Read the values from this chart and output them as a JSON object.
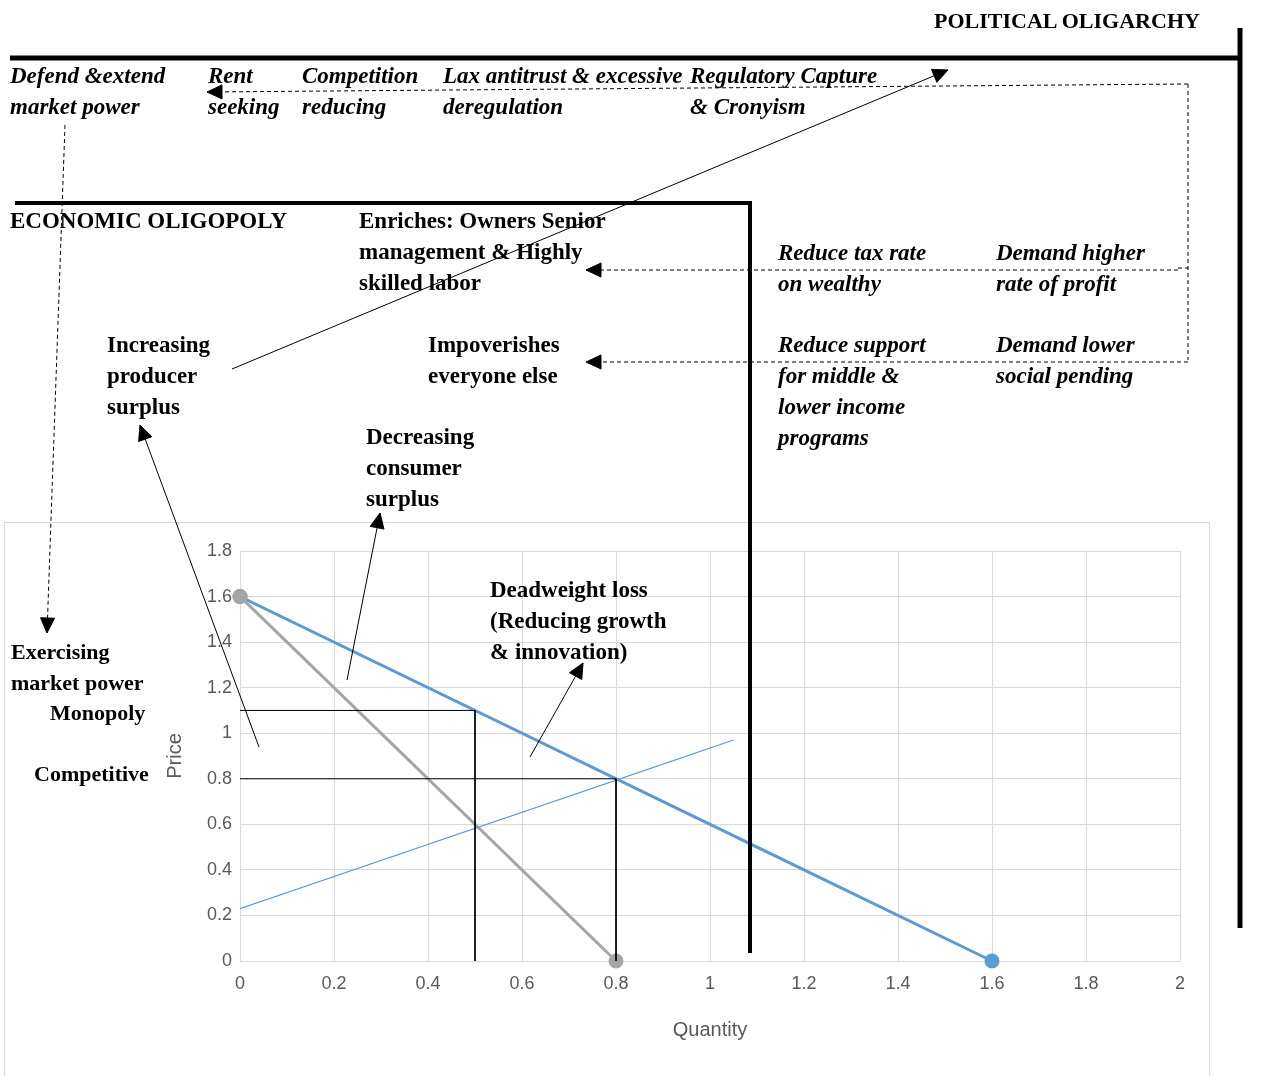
{
  "chart_data": {
    "type": "line",
    "xlabel": "Quantity",
    "ylabel": "Price",
    "xlim": [
      0,
      2
    ],
    "ylim": [
      0,
      1.8
    ],
    "xticks": [
      0,
      0.2,
      0.4,
      0.6,
      0.8,
      1,
      1.2,
      1.4,
      1.6,
      1.8,
      2
    ],
    "yticks": [
      0,
      0.2,
      0.4,
      0.6,
      0.8,
      1,
      1.2,
      1.4,
      1.6,
      1.8
    ],
    "grid": true,
    "series": [
      {
        "color": "#5b9bd5",
        "x": [
          0,
          1.6
        ],
        "values": [
          1.6,
          0
        ],
        "marker": "circle"
      },
      {
        "color": "#a5a5a5",
        "x": [
          0,
          0.8
        ],
        "values": [
          1.6,
          0
        ],
        "marker": "circle"
      },
      {
        "color": "#5b9bd5",
        "x": [
          0,
          1.05
        ],
        "values": [
          0.23,
          0.97
        ],
        "marker": "none"
      },
      {
        "color": "#000000",
        "x": [
          0,
          0.5,
          0.5
        ],
        "values": [
          1.1,
          1.1,
          0
        ],
        "marker": "none"
      },
      {
        "color": "#000000",
        "x": [
          0,
          0.8,
          0.8
        ],
        "values": [
          0.8,
          0.8,
          0
        ],
        "marker": "none"
      }
    ],
    "annotations": [
      "POLITICAL OLIGARCHY",
      "Defend &extend market power",
      "Rent seeking",
      "Competition reducing",
      "Lax antitrust & excessive deregulation",
      "Regulatory Capture & Cronyism",
      "ECONOMIC OLIGOPOLY",
      "Enriches: Owners Senior management & Highly skilled labor",
      "Reduce tax rate on wealthy",
      "Demand higher rate of profit",
      "Increasing producer surplus",
      "Impoverishes everyone else",
      "Reduce support for middle & lower income programs",
      "Demand lower social pending",
      "Decreasing consumer surplus",
      "Deadweight loss (Reducing growth & innovation)",
      "Exercising market power",
      "Monopoly",
      "Competitive"
    ]
  }
}
